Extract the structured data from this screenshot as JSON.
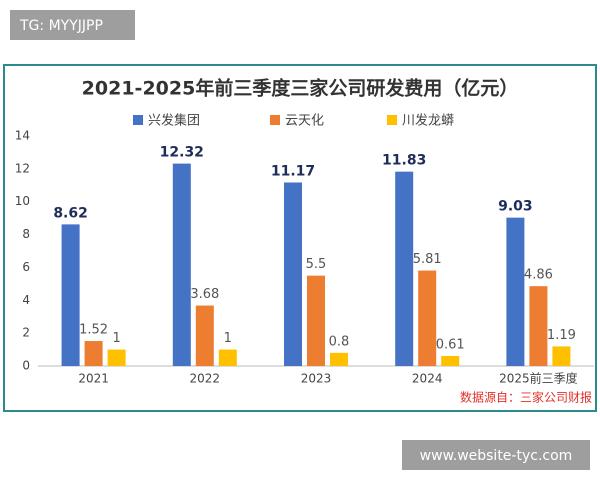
{
  "watermarks": [
    "TG: MYYJJPP",
    "www.website-tyc.com"
  ],
  "chart_data": {
    "type": "bar",
    "title": "2021-2025年前三季度三家公司研发费用（亿元）",
    "categories": [
      "2021",
      "2022",
      "2023",
      "2024",
      "2025前三季度"
    ],
    "series": [
      {
        "name": "兴发集团",
        "color": "#4472c4",
        "values": [
          8.62,
          12.32,
          11.17,
          11.83,
          9.03
        ]
      },
      {
        "name": "云天化",
        "color": "#ed7d31",
        "values": [
          1.52,
          3.68,
          5.5,
          5.81,
          4.86
        ]
      },
      {
        "name": "川发龙蟒",
        "color": "#ffc000",
        "values": [
          1,
          1,
          0.8,
          0.61,
          1.19
        ]
      }
    ],
    "ylim": [
      0,
      14
    ],
    "yticks": [
      0,
      2,
      4,
      6,
      8,
      10,
      12,
      14
    ],
    "grid": false,
    "legend": "top",
    "source": "数据源自：三家公司财报"
  }
}
